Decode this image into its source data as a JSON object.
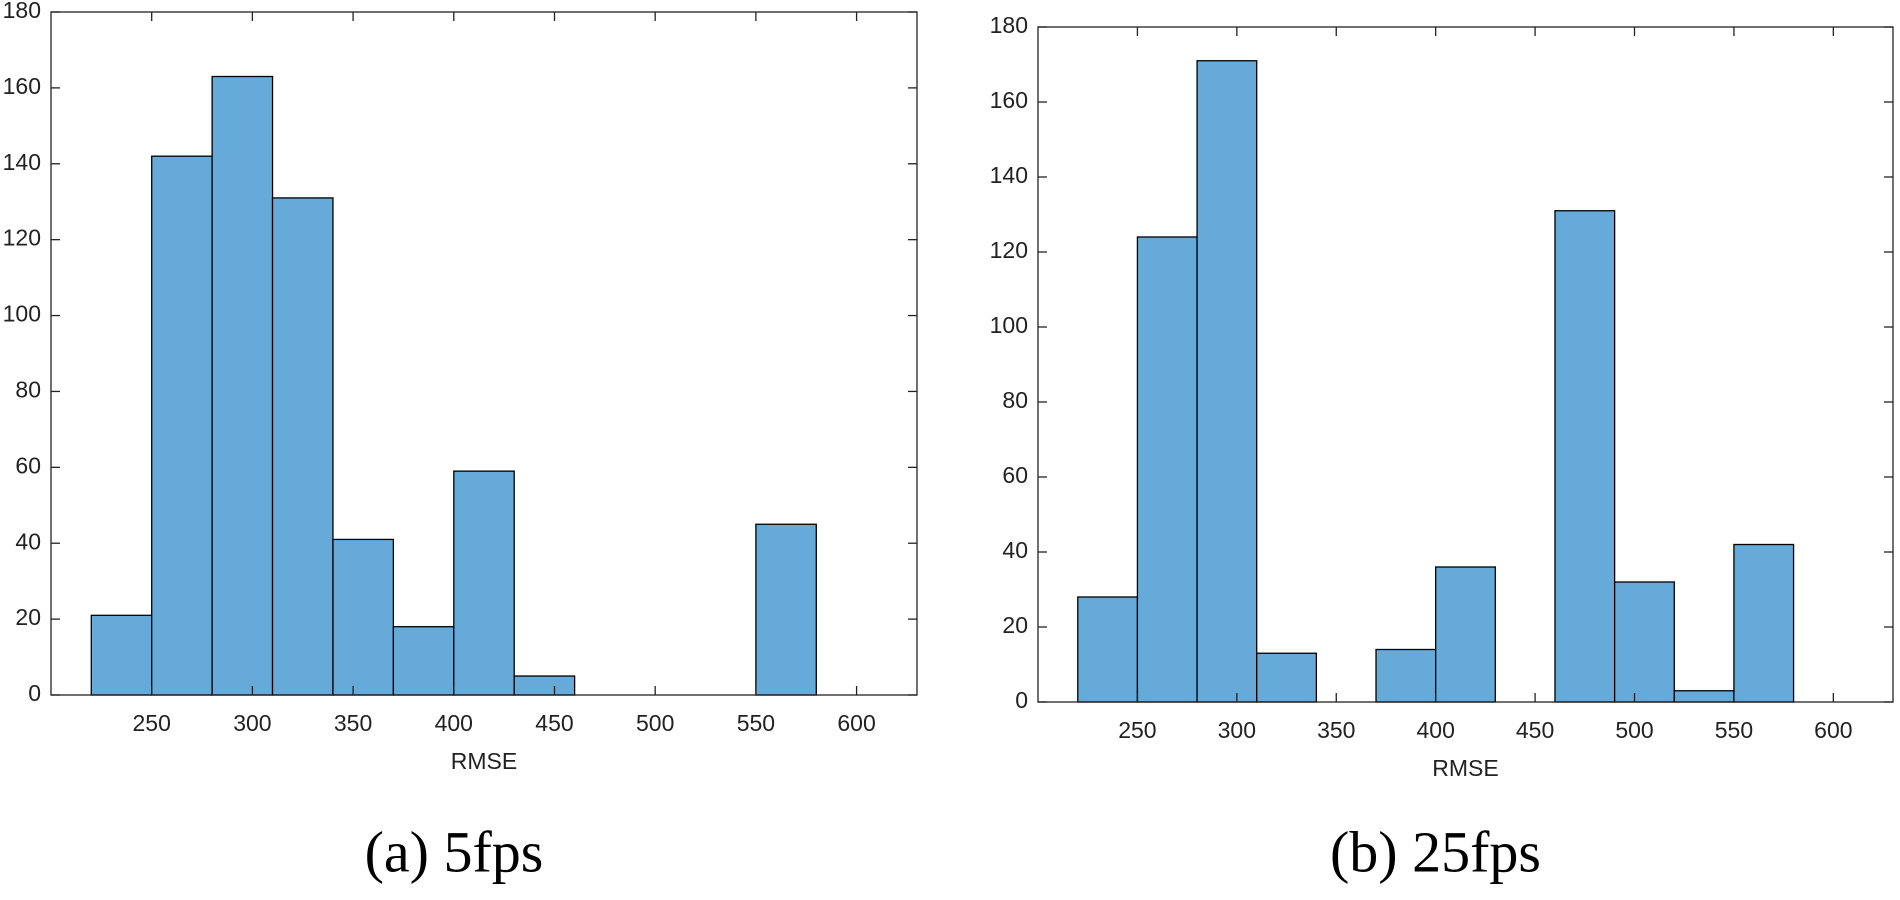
{
  "chart_data": [
    {
      "type": "histogram",
      "caption": "(a) 5fps",
      "xlabel": "RMSE",
      "color": "#65aad8",
      "bins": [
        220,
        250,
        280,
        310,
        340,
        370,
        400,
        430,
        460,
        490,
        520,
        550,
        580,
        610
      ],
      "values": [
        21,
        142,
        163,
        131,
        41,
        18,
        59,
        5,
        0,
        0,
        0,
        45,
        0
      ],
      "xlim": [
        200,
        630
      ],
      "ylim": [
        0,
        180
      ],
      "xticks": [
        250,
        300,
        350,
        400,
        450,
        500,
        550,
        600
      ],
      "yticks": [
        0,
        20,
        40,
        60,
        80,
        100,
        120,
        140,
        160,
        180
      ]
    },
    {
      "type": "histogram",
      "caption": "(b) 25fps",
      "xlabel": "RMSE",
      "color": "#65aad8",
      "bins": [
        220,
        250,
        280,
        310,
        340,
        370,
        400,
        430,
        460,
        490,
        520,
        550,
        580,
        610
      ],
      "values": [
        28,
        124,
        171,
        13,
        0,
        14,
        36,
        0,
        131,
        32,
        3,
        42,
        0
      ],
      "xlim": [
        200,
        630
      ],
      "ylim": [
        0,
        180
      ],
      "xticks": [
        250,
        300,
        350,
        400,
        450,
        500,
        550,
        600
      ],
      "yticks": [
        0,
        20,
        40,
        60,
        80,
        100,
        120,
        140,
        160,
        180
      ]
    }
  ]
}
